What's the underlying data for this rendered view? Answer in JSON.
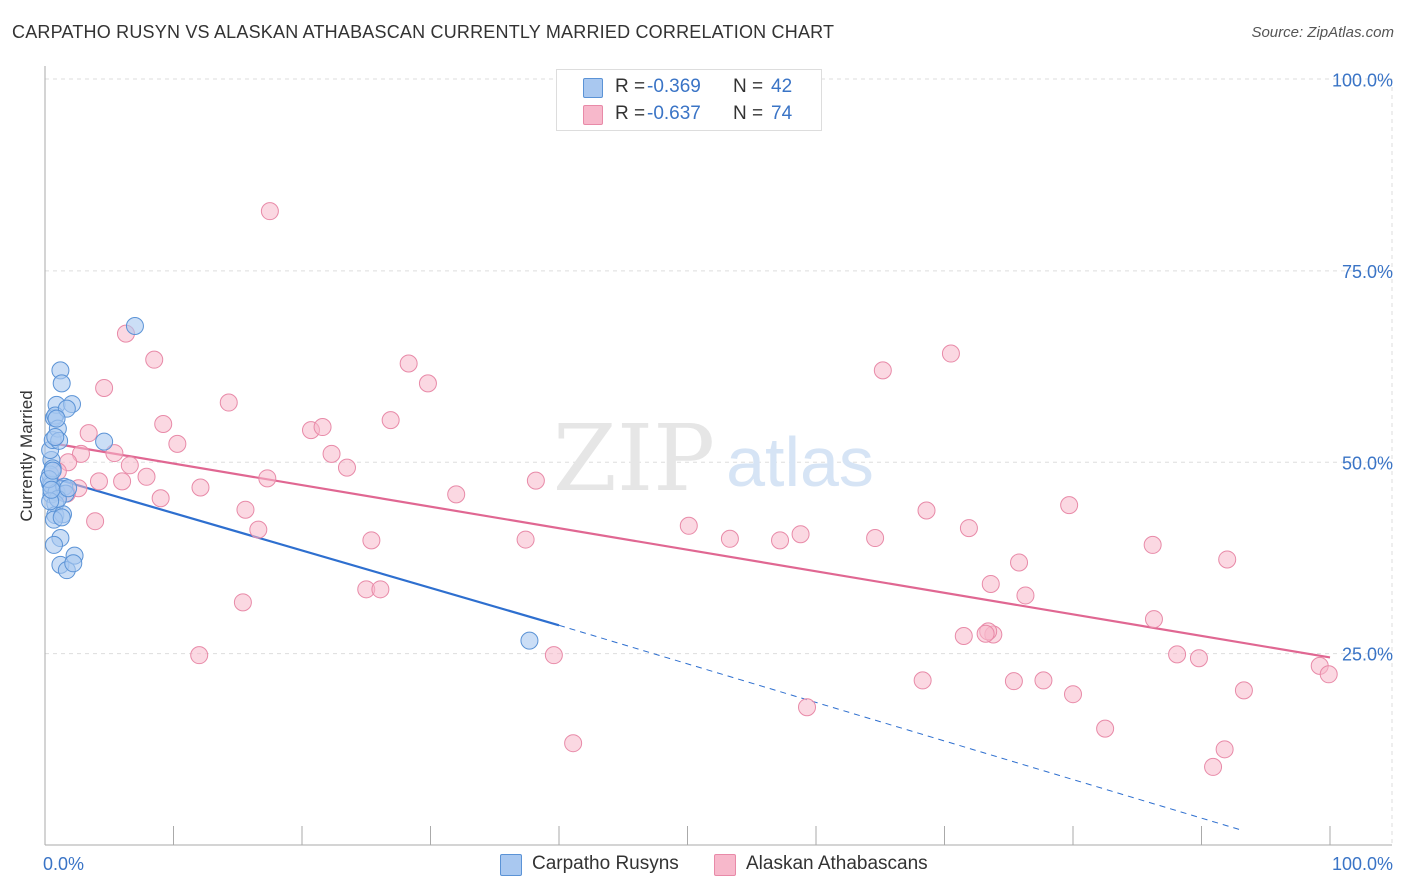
{
  "header": {
    "title": "CARPATHO RUSYN VS ALASKAN ATHABASCAN CURRENTLY MARRIED CORRELATION CHART",
    "source": "Source: ZipAtlas.com"
  },
  "watermark": {
    "zip": "ZIP",
    "atlas": "atlas"
  },
  "stats": {
    "series1": {
      "r_label": "R =",
      "r_value": "-0.369",
      "n_label": "N =",
      "n_value": "42",
      "color": "#a9c8f0"
    },
    "series2": {
      "r_label": "R =",
      "r_value": "-0.637",
      "n_label": "N =",
      "n_value": "74",
      "color": "#f7b8cb"
    }
  },
  "legend": {
    "series1_label": "Carpatho Rusyns",
    "series2_label": "Alaskan Athabascans"
  },
  "colors": {
    "series1_fill": "#a9c8f0",
    "series1_stroke": "#5b93d6",
    "series1_line": "#2e6fcf",
    "series2_fill": "#f7b8cb",
    "series2_stroke": "#e88aa8",
    "series2_line": "#e06792",
    "axis_text": "#3a74c6",
    "grid": "#dddddd"
  },
  "chart_data": {
    "type": "scatter",
    "title": "CARPATHO RUSYN VS ALASKAN ATHABASCAN CURRENTLY MARRIED CORRELATION CHART",
    "xlabel": "",
    "ylabel": "Currently Married",
    "xlim": [
      0,
      100
    ],
    "ylim": [
      0,
      100
    ],
    "x_tick_labels": [
      {
        "value": 0,
        "label": "0.0%"
      },
      {
        "value": 100,
        "label": "100.0%"
      }
    ],
    "y_tick_labels": [
      {
        "value": 25,
        "label": "25.0%"
      },
      {
        "value": 50,
        "label": "50.0%"
      },
      {
        "value": 75,
        "label": "75.0%"
      },
      {
        "value": 100,
        "label": "100.0%"
      }
    ],
    "grid": true,
    "legend_position": "bottom-center",
    "series": [
      {
        "name": "Carpatho Rusyns",
        "points": [
          [
            0.4,
            47.2
          ],
          [
            0.5,
            50.3
          ],
          [
            0.4,
            51.6
          ],
          [
            0.6,
            52.9
          ],
          [
            0.4,
            48.4
          ],
          [
            0.5,
            45.8
          ],
          [
            0.7,
            55.8
          ],
          [
            0.9,
            57.5
          ],
          [
            1.2,
            62.0
          ],
          [
            1.3,
            60.3
          ],
          [
            0.8,
            56.1
          ],
          [
            1.0,
            54.4
          ],
          [
            1.1,
            52.8
          ],
          [
            0.6,
            49.2
          ],
          [
            0.5,
            47.0
          ],
          [
            0.9,
            46.1
          ],
          [
            1.5,
            46.8
          ],
          [
            1.6,
            45.9
          ],
          [
            0.8,
            44.6
          ],
          [
            0.8,
            43.1
          ],
          [
            1.4,
            43.2
          ],
          [
            0.7,
            42.5
          ],
          [
            1.2,
            40.1
          ],
          [
            0.7,
            39.2
          ],
          [
            1.2,
            36.6
          ],
          [
            1.7,
            35.9
          ],
          [
            2.1,
            57.6
          ],
          [
            1.7,
            57.0
          ],
          [
            2.3,
            37.8
          ],
          [
            2.2,
            36.8
          ],
          [
            4.6,
            52.7
          ],
          [
            7.0,
            67.8
          ],
          [
            37.7,
            26.7
          ],
          [
            0.3,
            47.8
          ],
          [
            0.6,
            48.9
          ],
          [
            1.0,
            45.2
          ],
          [
            0.4,
            44.9
          ],
          [
            1.8,
            46.6
          ],
          [
            0.9,
            55.7
          ],
          [
            0.5,
            46.4
          ],
          [
            1.3,
            42.8
          ],
          [
            0.8,
            53.3
          ]
        ],
        "trend_solid": {
          "x": [
            0.5,
            40
          ],
          "y": [
            48.0,
            28.7
          ]
        },
        "trend_dashed": {
          "x": [
            40,
            93
          ],
          "y": [
            28.7,
            2.0
          ]
        }
      },
      {
        "name": "Alaskan Athabascans",
        "points": [
          [
            17.5,
            82.8
          ],
          [
            6.3,
            66.8
          ],
          [
            8.5,
            63.4
          ],
          [
            70.5,
            64.2
          ],
          [
            28.3,
            62.9
          ],
          [
            65.2,
            62.0
          ],
          [
            4.6,
            59.7
          ],
          [
            29.8,
            60.3
          ],
          [
            14.3,
            57.8
          ],
          [
            9.2,
            55.0
          ],
          [
            26.9,
            55.5
          ],
          [
            20.7,
            54.2
          ],
          [
            21.6,
            54.6
          ],
          [
            3.4,
            53.8
          ],
          [
            10.3,
            52.4
          ],
          [
            22.3,
            51.1
          ],
          [
            2.8,
            51.1
          ],
          [
            5.4,
            51.2
          ],
          [
            6.6,
            49.6
          ],
          [
            1.8,
            50.0
          ],
          [
            23.5,
            49.3
          ],
          [
            1.0,
            48.8
          ],
          [
            7.9,
            48.1
          ],
          [
            17.3,
            47.9
          ],
          [
            38.2,
            47.6
          ],
          [
            4.2,
            47.5
          ],
          [
            6.0,
            47.5
          ],
          [
            2.6,
            46.6
          ],
          [
            12.1,
            46.7
          ],
          [
            32.0,
            45.8
          ],
          [
            9.0,
            45.3
          ],
          [
            1.7,
            45.9
          ],
          [
            15.6,
            43.8
          ],
          [
            68.6,
            43.7
          ],
          [
            79.7,
            44.4
          ],
          [
            3.9,
            42.3
          ],
          [
            16.6,
            41.2
          ],
          [
            71.9,
            41.4
          ],
          [
            50.1,
            41.7
          ],
          [
            58.8,
            40.6
          ],
          [
            25.4,
            39.8
          ],
          [
            37.4,
            39.9
          ],
          [
            53.3,
            40.0
          ],
          [
            57.2,
            39.8
          ],
          [
            64.6,
            40.1
          ],
          [
            86.2,
            39.2
          ],
          [
            75.8,
            36.9
          ],
          [
            92.0,
            37.3
          ],
          [
            73.6,
            34.1
          ],
          [
            76.3,
            32.6
          ],
          [
            25.0,
            33.4
          ],
          [
            26.1,
            33.4
          ],
          [
            15.4,
            31.7
          ],
          [
            86.3,
            29.5
          ],
          [
            73.8,
            27.5
          ],
          [
            73.4,
            27.9
          ],
          [
            71.5,
            27.3
          ],
          [
            73.2,
            27.6
          ],
          [
            12.0,
            24.8
          ],
          [
            39.6,
            24.8
          ],
          [
            88.1,
            24.9
          ],
          [
            89.8,
            24.4
          ],
          [
            99.2,
            23.4
          ],
          [
            99.9,
            22.3
          ],
          [
            68.3,
            21.5
          ],
          [
            75.4,
            21.4
          ],
          [
            77.7,
            21.5
          ],
          [
            80.0,
            19.7
          ],
          [
            93.3,
            20.2
          ],
          [
            59.3,
            18.0
          ],
          [
            82.5,
            15.2
          ],
          [
            41.1,
            13.3
          ],
          [
            91.8,
            12.5
          ],
          [
            90.9,
            10.2
          ]
        ],
        "trend_solid": {
          "x": [
            0.5,
            100
          ],
          "y": [
            52.5,
            24.5
          ]
        }
      }
    ]
  }
}
